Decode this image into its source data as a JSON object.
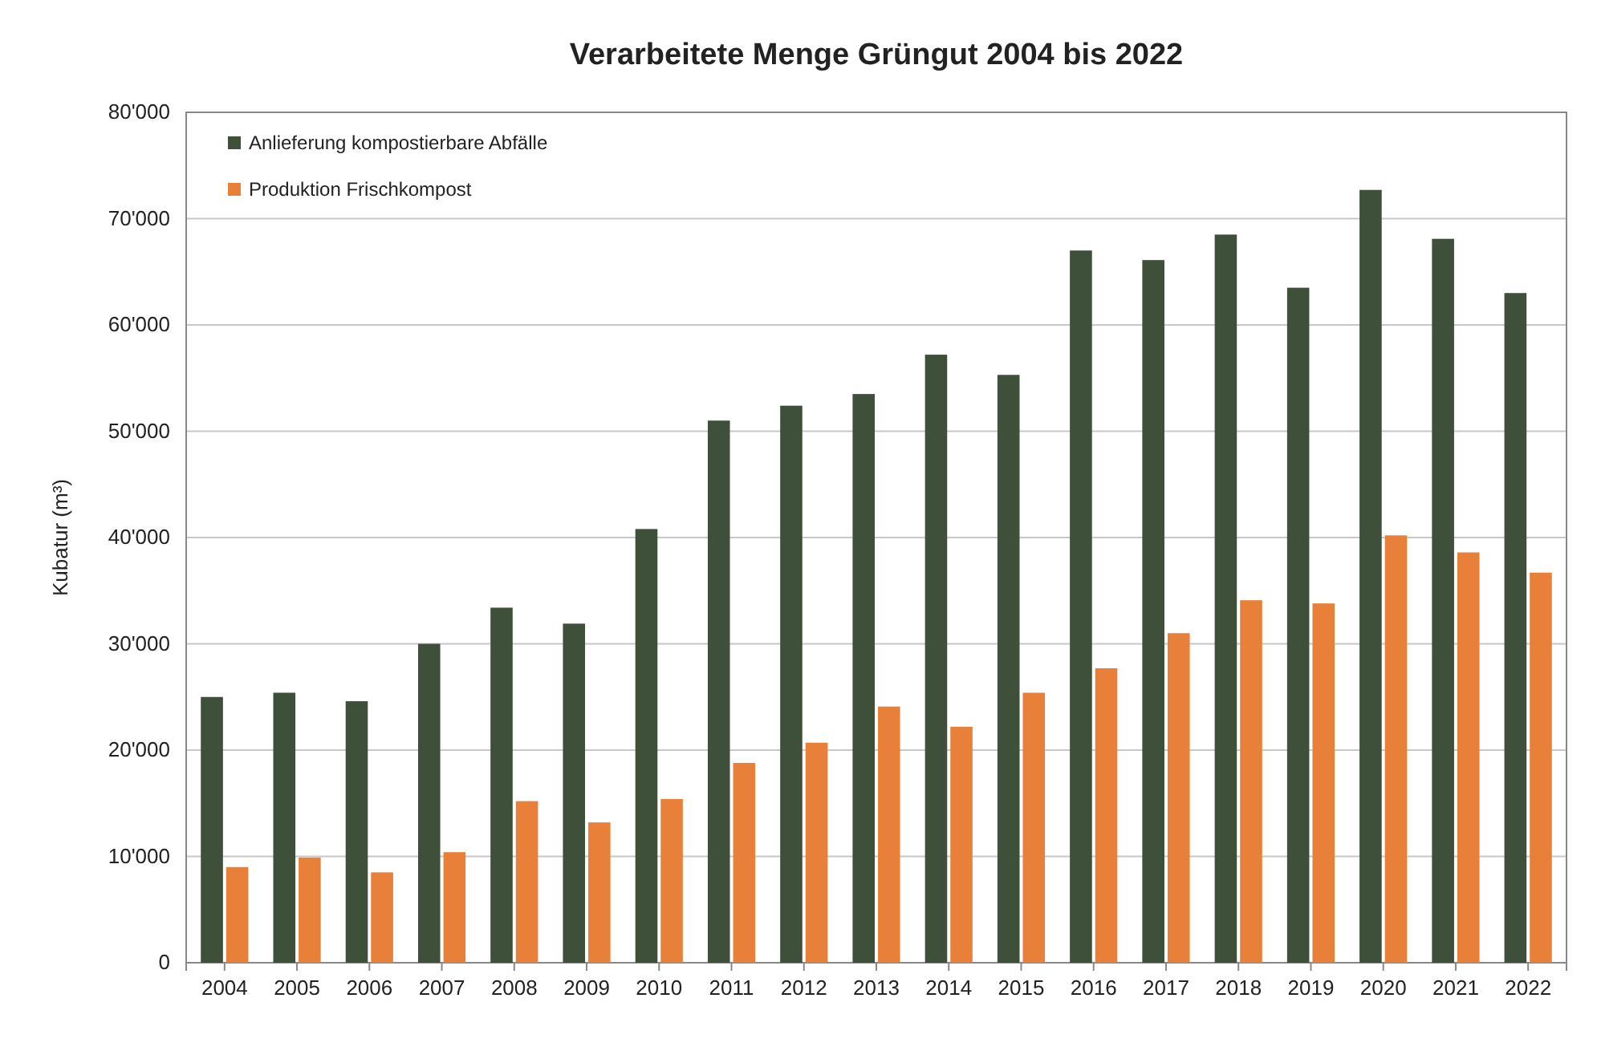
{
  "chart_data": {
    "type": "bar",
    "title": "Verarbeitete Menge Grüngut 2004 bis 2022",
    "ylabel": "Kubatur (m³)",
    "categories": [
      "2004",
      "2005",
      "2006",
      "2007",
      "2008",
      "2009",
      "2010",
      "2011",
      "2012",
      "2013",
      "2014",
      "2015",
      "2016",
      "2017",
      "2018",
      "2019",
      "2020",
      "2021",
      "2022"
    ],
    "series": [
      {
        "name": "Anlieferung kompostierbare Abfälle",
        "color": "#3e5039",
        "values": [
          25000,
          25400,
          24600,
          30000,
          33400,
          31900,
          40800,
          51000,
          52400,
          53500,
          57200,
          55300,
          67000,
          66100,
          68500,
          63500,
          72700,
          68100,
          63000
        ]
      },
      {
        "name": "Produktion Frischkompost",
        "color": "#e8803a",
        "values": [
          9000,
          9900,
          8500,
          10400,
          15200,
          13200,
          15400,
          18800,
          20700,
          24100,
          22200,
          25400,
          27700,
          31000,
          34100,
          33800,
          40200,
          38600,
          36700
        ]
      }
    ],
    "ylim": [
      0,
      80000
    ],
    "yticks": [
      0,
      {
        "value": 10000,
        "label": "10'000"
      },
      {
        "value": 20000,
        "label": "20'000"
      },
      {
        "value": 30000,
        "label": "30'000"
      },
      {
        "value": 40000,
        "label": "40'000"
      },
      {
        "value": 50000,
        "label": "50'000"
      },
      {
        "value": 60000,
        "label": "60'000"
      },
      {
        "value": 70000,
        "label": "70'000"
      },
      {
        "value": 80000,
        "label": "80'000"
      }
    ],
    "grid": "y",
    "legend": "top left"
  }
}
